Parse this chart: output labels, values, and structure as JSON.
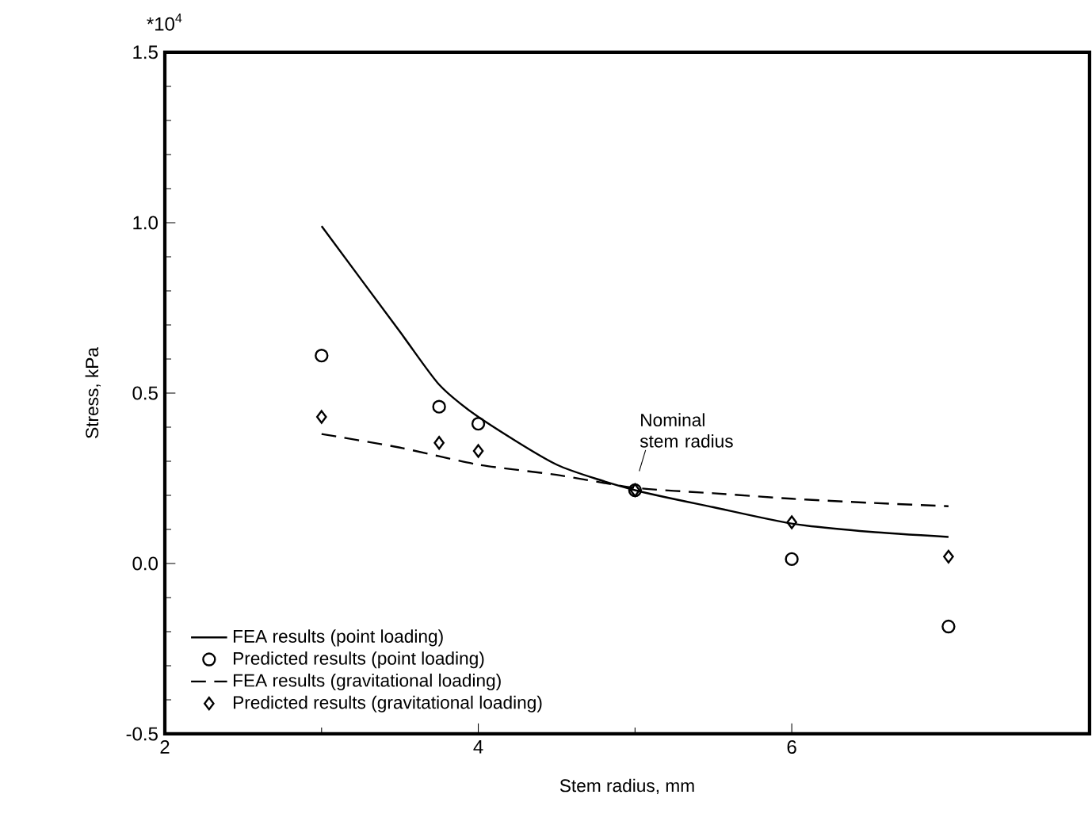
{
  "chart_data": {
    "type": "line",
    "xlabel": "Stem radius, mm",
    "ylabel": "Stress, kPa",
    "xlim": [
      2,
      7.9
    ],
    "ylim": [
      -0.5,
      1.5
    ],
    "xticks": [
      2,
      4,
      6
    ],
    "yticks": [
      {
        "value": -0.5,
        "label": "-0.5"
      },
      {
        "value": 0,
        "label": "0.0"
      },
      0.5,
      {
        "value": 1,
        "label": "1.0"
      },
      1.5
    ],
    "annotations": [
      "*10$^{4}$",
      {
        "text": "Nominal stem radius",
        "x": 5,
        "y": 0.215
      }
    ],
    "legend": "bottom left",
    "grid": false,
    "series": [
      {
        "name": "FEA results (point loading)",
        "line_style": "solid",
        "marker": "none",
        "color": "#000000",
        "x": [
          3,
          3.5,
          3.75,
          4,
          4.5,
          5,
          5.5,
          6,
          6.5,
          7
        ],
        "values": [
          0.99,
          0.68,
          0.525,
          0.43,
          0.29,
          0.215,
          0.165,
          0.117,
          0.093,
          0.078
        ]
      },
      {
        "name": "Predicted results (point loading)",
        "type": "scatter",
        "marker": "circle",
        "color": "#000000",
        "x": [
          3,
          3.75,
          4,
          5,
          6,
          7
        ],
        "values": [
          0.61,
          0.46,
          0.41,
          0.215,
          0.013,
          -0.185
        ]
      },
      {
        "name": "FEA results (gravitational loading)",
        "line_style": "dashed",
        "marker": "none",
        "color": "#000000",
        "x": [
          3,
          3.5,
          4,
          4.5,
          5,
          5.5,
          6,
          6.5,
          7
        ],
        "values": [
          0.38,
          0.34,
          0.29,
          0.26,
          0.222,
          0.206,
          0.19,
          0.178,
          0.168
        ]
      },
      {
        "name": "Predicted results (gravitational loading)",
        "type": "scatter",
        "marker": "diamond",
        "color": "#000000",
        "x": [
          3,
          3.75,
          4,
          5,
          6,
          7
        ],
        "values": [
          0.43,
          0.354,
          0.33,
          0.215,
          0.121,
          0.02
        ]
      }
    ]
  }
}
